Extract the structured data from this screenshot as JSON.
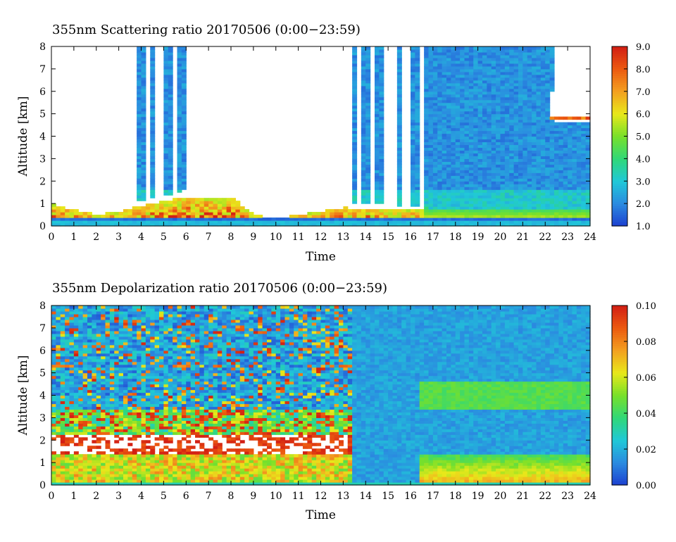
{
  "chart_data": [
    {
      "type": "heatmap",
      "title": "355nm Scattering ratio  20170506 (0:00−23:59)",
      "xlabel": "Time",
      "ylabel": "Altitude [km]",
      "xlim": [
        0,
        24
      ],
      "ylim": [
        0,
        8
      ],
      "x_ticks": [
        "0",
        "1",
        "2",
        "3",
        "4",
        "5",
        "6",
        "7",
        "8",
        "9",
        "10",
        "11",
        "12",
        "13",
        "14",
        "15",
        "16",
        "17",
        "18",
        "19",
        "20",
        "21",
        "22",
        "23",
        "24"
      ],
      "y_ticks": [
        "0",
        "1",
        "2",
        "3",
        "4",
        "5",
        "6",
        "7",
        "8"
      ],
      "colorbar": {
        "range": [
          1.0,
          9.0
        ],
        "ticks": [
          "1.0",
          "2.0",
          "3.0",
          "4.0",
          "5.0",
          "6.0",
          "7.0",
          "8.0",
          "9.0"
        ],
        "colormap": [
          "#1c3fd0",
          "#2b8be0",
          "#20c8d8",
          "#30d878",
          "#78e02a",
          "#e8e81a",
          "#f3a020",
          "#ec5a10",
          "#d21e14"
        ]
      },
      "features": {
        "boundary_layer_top_km": [
          {
            "time": 0,
            "alt": 1.2
          },
          {
            "time": 2,
            "alt": 0.6
          },
          {
            "time": 3,
            "alt": 0.8
          },
          {
            "time": 4,
            "alt": 1.1
          },
          {
            "time": 6,
            "alt": 1.6
          },
          {
            "time": 8,
            "alt": 1.6
          },
          {
            "time": 9,
            "alt": 0.6
          },
          {
            "time": 10,
            "alt": 0.4
          },
          {
            "time": 12,
            "alt": 0.8
          },
          {
            "time": 13,
            "alt": 1.0
          },
          {
            "time": 16,
            "alt": 0.9
          },
          {
            "time": 17,
            "alt": 0.8
          },
          {
            "time": 24,
            "alt": 0.8
          }
        ],
        "cloud_top_layer": {
          "time_start": 22.3,
          "time_end": 24,
          "alt_km": [
            4.6,
            6.0
          ]
        },
        "background_value": 2.0
      }
    },
    {
      "type": "heatmap",
      "title": "355nm Depolarization ratio  20170506 (0:00−23:59)",
      "xlabel": "Time",
      "ylabel": "Altitude [km]",
      "xlim": [
        0,
        24
      ],
      "ylim": [
        0,
        8
      ],
      "x_ticks": [
        "0",
        "1",
        "2",
        "3",
        "4",
        "5",
        "6",
        "7",
        "8",
        "9",
        "10",
        "11",
        "12",
        "13",
        "14",
        "15",
        "16",
        "17",
        "18",
        "19",
        "20",
        "21",
        "22",
        "23",
        "24"
      ],
      "y_ticks": [
        "0",
        "1",
        "2",
        "3",
        "4",
        "5",
        "6",
        "7",
        "8"
      ],
      "colorbar": {
        "range": [
          0.0,
          0.1
        ],
        "ticks": [
          "0.00",
          "0.02",
          "0.04",
          "0.06",
          "0.08",
          "0.10"
        ],
        "colormap": [
          "#1c3fd0",
          "#2b8be0",
          "#20c8d8",
          "#30d878",
          "#78e02a",
          "#e8e81a",
          "#f3a020",
          "#ec5a10",
          "#d21e14"
        ]
      },
      "features": {
        "dust_layer_km": {
          "time_start": 0,
          "time_end": 13.3,
          "alt_km": [
            1.0,
            3.5
          ]
        },
        "elevated_layer_km": {
          "time_start": 16.5,
          "time_end": 24,
          "alt_km": [
            3.4,
            4.6
          ],
          "value": 0.045
        },
        "near_surface_high_depol": {
          "time_start": 16.5,
          "time_end": 24,
          "alt_km": [
            0.2,
            1.4
          ],
          "value": 0.055
        }
      }
    }
  ]
}
